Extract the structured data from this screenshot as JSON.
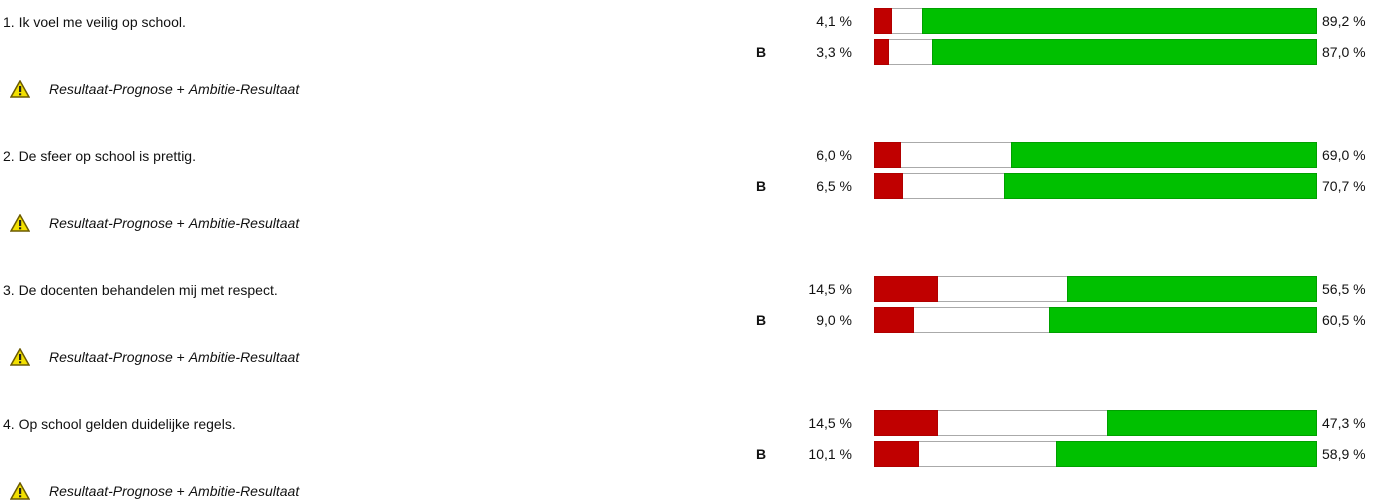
{
  "items": [
    {
      "question": "1. Ik voel me veilig op school.",
      "warning": [
        "Resultaat-Prognose",
        "+",
        "Ambitie-Resultaat"
      ],
      "rows": [
        {
          "red": 4.1,
          "red_label": "4,1 %",
          "green": 89.2,
          "green_label": "89,2 %"
        },
        {
          "label": "B",
          "red": 3.3,
          "red_label": "3,3 %",
          "green": 87.0,
          "green_label": "87,0 %"
        }
      ]
    },
    {
      "question": "2. De sfeer op school is prettig.",
      "warning": [
        "Resultaat-Prognose",
        "+",
        "Ambitie-Resultaat"
      ],
      "rows": [
        {
          "red": 6.0,
          "red_label": "6,0 %",
          "green": 69.0,
          "green_label": "69,0 %"
        },
        {
          "label": "B",
          "red": 6.5,
          "red_label": "6,5 %",
          "green": 70.7,
          "green_label": "70,7 %"
        }
      ]
    },
    {
      "question": "3. De docenten behandelen mij met respect.",
      "warning": [
        "Resultaat-Prognose",
        "+",
        "Ambitie-Resultaat"
      ],
      "rows": [
        {
          "red": 14.5,
          "red_label": "14,5 %",
          "green": 56.5,
          "green_label": "56,5 %"
        },
        {
          "label": "B",
          "red": 9.0,
          "red_label": "9,0 %",
          "green": 60.5,
          "green_label": "60,5 %"
        }
      ]
    },
    {
      "question": "4. Op school gelden duidelijke regels.",
      "warning": [
        "Resultaat-Prognose",
        "+",
        "Ambitie-Resultaat"
      ],
      "rows": [
        {
          "red": 14.5,
          "red_label": "14,5 %",
          "green": 47.3,
          "green_label": "47,3 %"
        },
        {
          "label": "B",
          "red": 10.1,
          "red_label": "10,1 %",
          "green": 58.9,
          "green_label": "58,9 %"
        }
      ]
    }
  ]
}
